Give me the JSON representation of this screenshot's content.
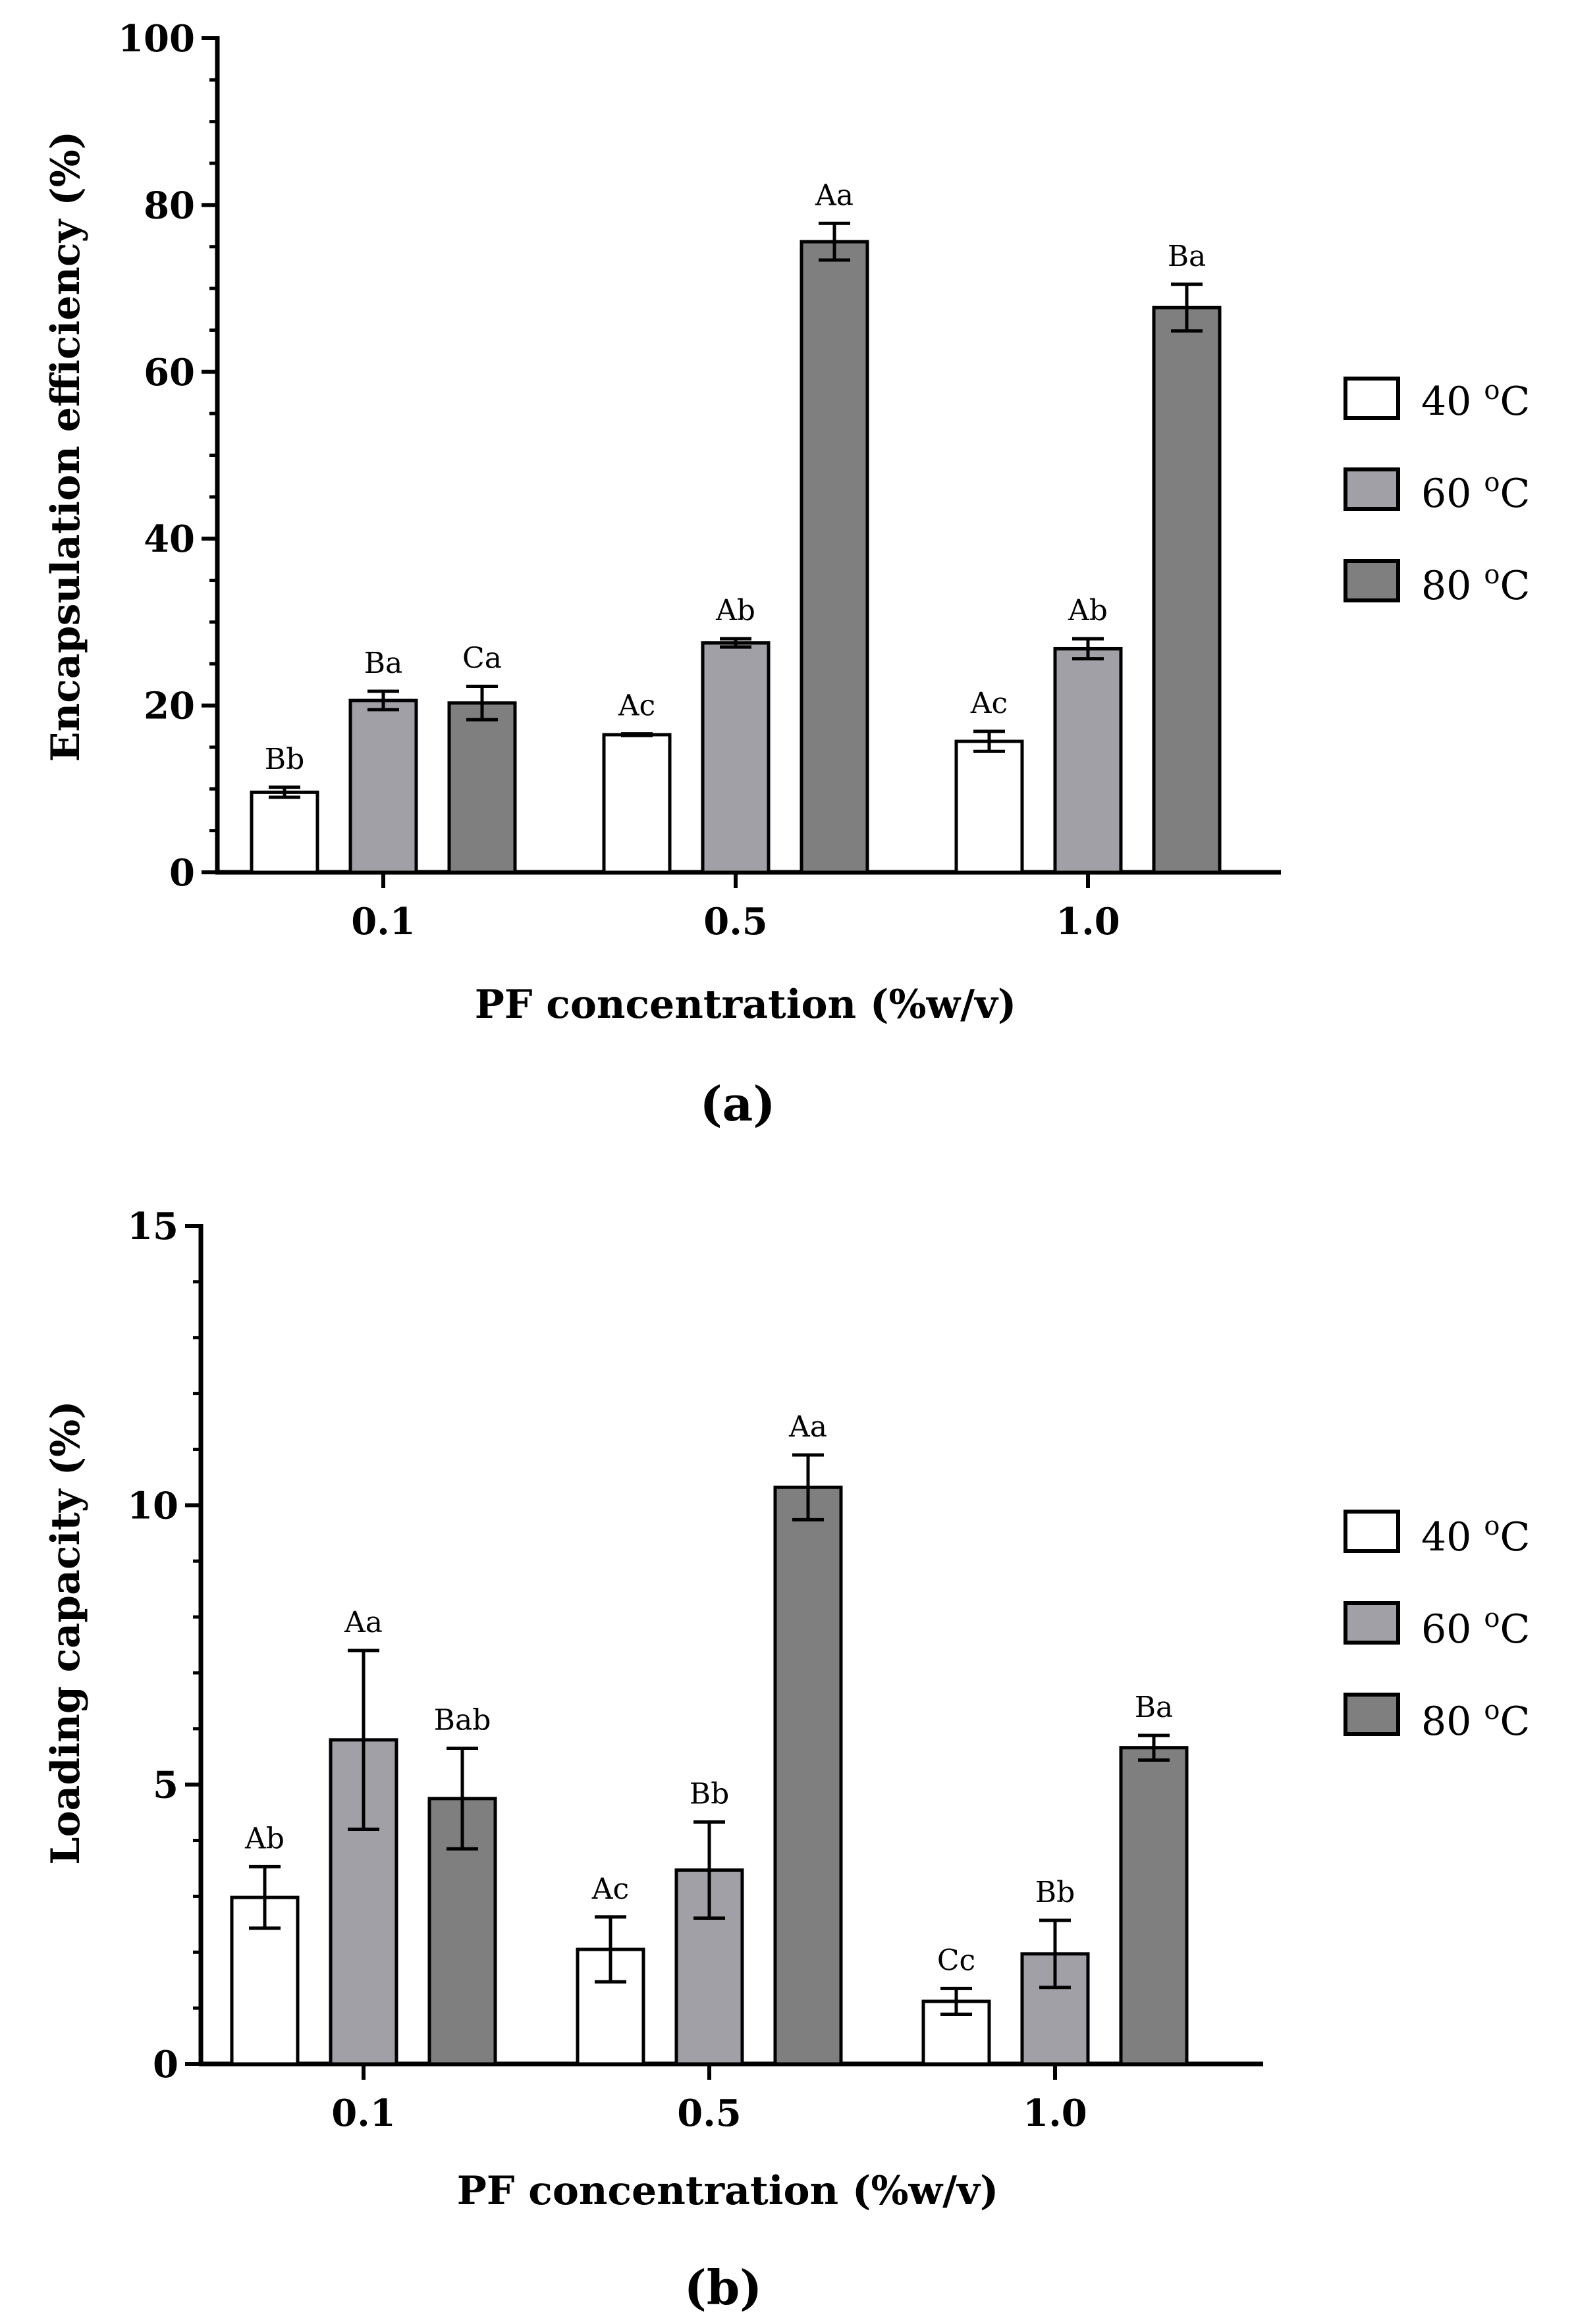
{
  "legend": {
    "items": [
      {
        "label": "40 ",
        "sup": "o",
        "unit": "C",
        "color": "#ffffff"
      },
      {
        "label": "60 ",
        "sup": "o",
        "unit": "C",
        "color": "#a0a0a6"
      },
      {
        "label": "80 ",
        "sup": "o",
        "unit": "C",
        "color": "#7f7f7f"
      }
    ]
  },
  "chart_data": [
    {
      "type": "bar",
      "panel_label": "(a)",
      "title": "",
      "xlabel": "PF concentration (%w/v)",
      "ylabel": "Encapsulation efficiency (%)",
      "ylim": [
        0,
        100
      ],
      "yticks": [
        0,
        20,
        40,
        60,
        80,
        100
      ],
      "ytick_labels": [
        "0",
        "20",
        "40",
        "60",
        "80",
        "100"
      ],
      "categories": [
        "0.1",
        "0.5",
        "1.0"
      ],
      "series": [
        {
          "name": "40 oC",
          "values": [
            9.6,
            16.5,
            15.7
          ],
          "errors": [
            0.6,
            0.1,
            1.2
          ],
          "annotations": [
            "Bb",
            "Ac",
            "Ac"
          ]
        },
        {
          "name": "60 oC",
          "values": [
            20.6,
            27.5,
            26.8
          ],
          "errors": [
            1.1,
            0.5,
            1.2
          ],
          "annotations": [
            "Ba",
            "Ab",
            "Ab"
          ]
        },
        {
          "name": "80 oC",
          "values": [
            20.3,
            75.6,
            67.7
          ],
          "errors": [
            2.0,
            2.2,
            2.8
          ],
          "annotations": [
            "Ca",
            "Aa",
            "Ba"
          ]
        }
      ]
    },
    {
      "type": "bar",
      "panel_label": "(b)",
      "title": "",
      "xlabel": "PF concentration (%w/v)",
      "ylabel": "Loading capacity (%)",
      "ylim": [
        0,
        15
      ],
      "yticks": [
        0,
        5,
        10,
        15
      ],
      "ytick_labels": [
        "0",
        "5",
        "10",
        "15"
      ],
      "categories": [
        "0.1",
        "0.5",
        "1.0"
      ],
      "series": [
        {
          "name": "40 oC",
          "values": [
            2.98,
            2.05,
            1.12
          ],
          "errors": [
            0.55,
            0.58,
            0.23
          ],
          "annotations": [
            "Ab",
            "Ac",
            "Cc"
          ]
        },
        {
          "name": "60 oC",
          "values": [
            5.8,
            3.47,
            1.97
          ],
          "errors": [
            1.6,
            0.86,
            0.6
          ],
          "annotations": [
            "Aa",
            "Bb",
            "Bb"
          ]
        },
        {
          "name": "80 oC",
          "values": [
            4.75,
            10.32,
            5.66
          ],
          "errors": [
            0.9,
            0.58,
            0.22
          ],
          "annotations": [
            "Bab",
            "Aa",
            "Ba"
          ]
        }
      ]
    }
  ]
}
